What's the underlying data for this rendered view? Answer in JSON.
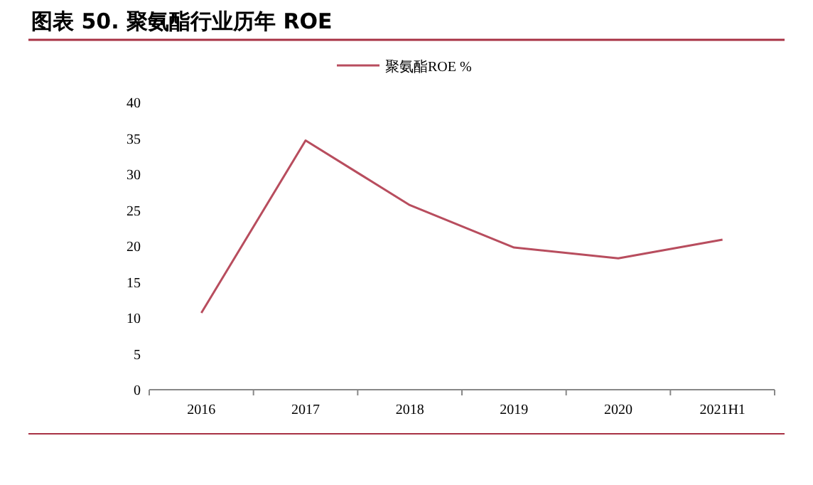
{
  "chart_data": {
    "type": "line",
    "title": "图表 50. 聚氨酯行业历年 ROE",
    "categories": [
      "2016",
      "2017",
      "2018",
      "2019",
      "2020",
      "2021H1"
    ],
    "series": [
      {
        "name": "聚氨酯ROE %",
        "color": "#b84d5e",
        "values": [
          10.7,
          34.7,
          25.7,
          19.8,
          18.3,
          20.9
        ]
      }
    ],
    "ylim": [
      0,
      40
    ],
    "yticks": [
      0,
      5,
      10,
      15,
      20,
      25,
      30,
      35,
      40
    ],
    "legend": "top",
    "grid": false,
    "marker": "none",
    "line_style": "solid"
  }
}
